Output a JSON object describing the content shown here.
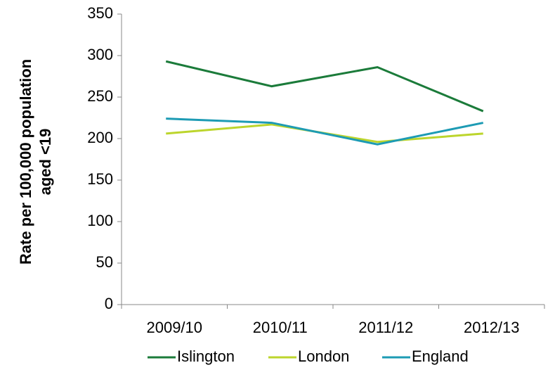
{
  "chart_data": {
    "type": "line",
    "y_label": [
      "Rate per 100,000 population",
      "aged <19"
    ],
    "categories": [
      "2009/10",
      "2010/11",
      "2011/12",
      "2012/13"
    ],
    "series": [
      {
        "name": "Islington",
        "color": "#1b7b3a",
        "values": [
          293,
          263,
          286,
          233
        ]
      },
      {
        "name": "London",
        "color": "#bcd52c",
        "values": [
          206,
          217,
          196,
          206
        ]
      },
      {
        "name": "England",
        "color": "#1d9bb4",
        "values": [
          224,
          219,
          193,
          219
        ]
      }
    ],
    "ylim": [
      0,
      350
    ],
    "yticks": [
      0,
      50,
      100,
      150,
      200,
      250,
      300,
      350
    ],
    "grid": false,
    "legend": "bottom"
  }
}
